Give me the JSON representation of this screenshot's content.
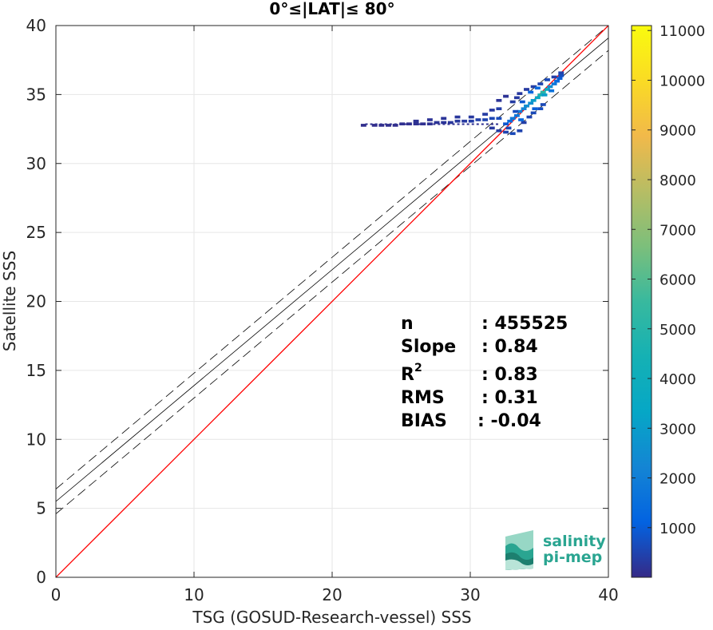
{
  "chart_data": {
    "type": "heatmap",
    "title": "0°≤|LAT|≤ 80°",
    "xlabel": "TSG (GOSUD-Research-vessel) SSS",
    "ylabel": "Satellite SSS",
    "xlim": [
      0,
      40
    ],
    "ylim": [
      0,
      40
    ],
    "xticks": [
      "0",
      "10",
      "20",
      "30",
      "40"
    ],
    "yticks": [
      "0",
      "5",
      "10",
      "15",
      "20",
      "25",
      "30",
      "35",
      "40"
    ],
    "grid": true,
    "colorbar": {
      "ticks": [
        "1000",
        "2000",
        "3000",
        "4000",
        "5000",
        "6000",
        "7000",
        "8000",
        "9000",
        "10000",
        "11000"
      ],
      "range": [
        1,
        11100
      ],
      "colormap": "parula"
    },
    "reference_line": {
      "slope": 1,
      "intercept": 0,
      "color": "#ff0000"
    },
    "fit_line": {
      "slope": 0.84,
      "intercept": 5.5,
      "band": 0.9,
      "color": "#000000"
    },
    "density_points": [
      [
        22.2,
        32.8,
        80
      ],
      [
        23.0,
        32.8,
        60
      ],
      [
        23.5,
        32.8,
        70
      ],
      [
        24.0,
        32.8,
        90
      ],
      [
        24.5,
        32.8,
        60
      ],
      [
        25.0,
        32.9,
        120
      ],
      [
        25.5,
        32.9,
        100
      ],
      [
        26.0,
        32.9,
        140
      ],
      [
        26.5,
        32.9,
        120
      ],
      [
        27.0,
        32.9,
        160
      ],
      [
        27.5,
        33.0,
        200
      ],
      [
        28.0,
        33.0,
        220
      ],
      [
        28.5,
        33.0,
        260
      ],
      [
        29.0,
        33.1,
        300
      ],
      [
        29.5,
        33.1,
        320
      ],
      [
        30.0,
        33.1,
        380
      ],
      [
        30.5,
        33.2,
        420
      ],
      [
        31.0,
        33.2,
        500
      ],
      [
        31.5,
        33.3,
        550
      ],
      [
        32.0,
        33.3,
        650
      ],
      [
        26.0,
        33.1,
        150
      ],
      [
        27.0,
        33.2,
        180
      ],
      [
        28.0,
        33.3,
        220
      ],
      [
        29.0,
        33.4,
        260
      ],
      [
        30.0,
        33.4,
        300
      ],
      [
        31.0,
        33.6,
        350
      ],
      [
        31.5,
        33.9,
        300
      ],
      [
        32.0,
        34.0,
        400
      ],
      [
        31.5,
        32.6,
        300
      ],
      [
        32.0,
        32.4,
        350
      ],
      [
        32.5,
        32.3,
        500
      ],
      [
        33.0,
        32.2,
        600
      ],
      [
        33.5,
        32.4,
        500
      ],
      [
        32.5,
        32.9,
        900
      ],
      [
        32.8,
        33.1,
        1400
      ],
      [
        33.0,
        33.3,
        1800
      ],
      [
        33.3,
        33.5,
        1700
      ],
      [
        33.5,
        33.8,
        2000
      ],
      [
        33.8,
        34.0,
        2200
      ],
      [
        34.0,
        34.2,
        2500
      ],
      [
        34.3,
        34.4,
        2600
      ],
      [
        34.5,
        34.6,
        3000
      ],
      [
        34.8,
        34.8,
        3500
      ],
      [
        35.0,
        35.0,
        4500
      ],
      [
        35.2,
        35.2,
        5000
      ],
      [
        35.5,
        35.4,
        3800
      ],
      [
        35.7,
        35.6,
        2500
      ],
      [
        36.0,
        35.8,
        1800
      ],
      [
        36.2,
        36.0,
        1400
      ],
      [
        36.4,
        36.2,
        1000
      ],
      [
        36.5,
        36.4,
        700
      ],
      [
        36.5,
        36.6,
        500
      ],
      [
        33.0,
        34.5,
        350
      ],
      [
        33.3,
        34.8,
        320
      ],
      [
        33.5,
        35.1,
        300
      ],
      [
        34.0,
        35.4,
        320
      ],
      [
        34.5,
        35.6,
        400
      ],
      [
        35.0,
        35.8,
        500
      ],
      [
        35.5,
        36.1,
        600
      ],
      [
        36.0,
        36.3,
        400
      ],
      [
        34.2,
        33.4,
        500
      ],
      [
        34.5,
        33.7,
        600
      ],
      [
        35.0,
        34.0,
        700
      ],
      [
        35.2,
        34.3,
        600
      ],
      [
        33.8,
        33.0,
        400
      ],
      [
        32.0,
        34.6,
        200
      ],
      [
        32.5,
        34.9,
        180
      ],
      [
        33.2,
        33.8,
        700
      ],
      [
        33.7,
        34.5,
        900
      ],
      [
        34.3,
        35.2,
        1200
      ],
      [
        34.8,
        35.5,
        1300
      ],
      [
        35.3,
        35.0,
        3000
      ],
      [
        35.8,
        35.3,
        1600
      ],
      [
        34.6,
        34.0,
        1000
      ],
      [
        33.6,
        33.2,
        1200
      ],
      [
        32.7,
        32.6,
        600
      ]
    ],
    "stats": [
      {
        "key": "n",
        "sup": "",
        "value": ": 455525"
      },
      {
        "key": "Slope",
        "sup": "",
        "value": ": 0.84"
      },
      {
        "key": "R",
        "sup": "2",
        "value": ": 0.83"
      },
      {
        "key": "RMS",
        "sup": "",
        "value": ": 0.31"
      },
      {
        "key": "BIAS",
        "sup": "",
        "value": ": -0.04"
      }
    ]
  },
  "logo": {
    "line1": "salinity",
    "line2": "pi-mep",
    "color": "#2aa591"
  }
}
